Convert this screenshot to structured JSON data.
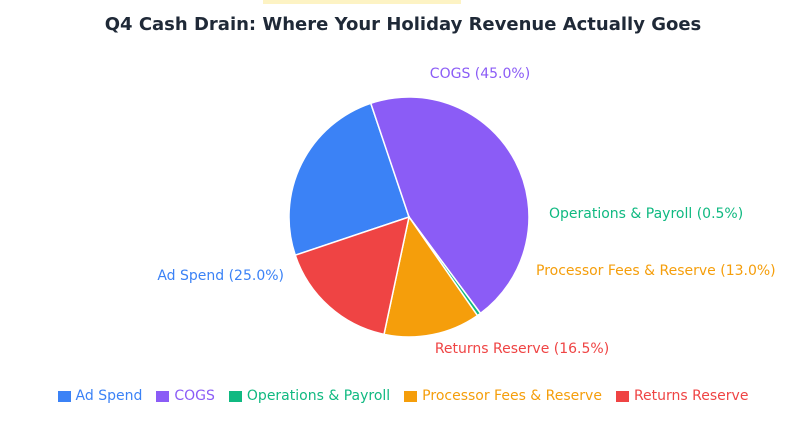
{
  "chart_data": {
    "type": "pie",
    "title": "Q4 Cash Drain: Where Your Holiday Revenue Actually Goes",
    "slices": [
      {
        "name": "Ad Spend",
        "label": "Ad Spend (25.0%)",
        "value": 25.0,
        "color": "#3b82f6"
      },
      {
        "name": "COGS",
        "label": "COGS (45.0%)",
        "value": 45.0,
        "color": "#8b5cf6"
      },
      {
        "name": "Operations & Payroll",
        "label": "Operations & Payroll (0.5%)",
        "value": 0.5,
        "color": "#10b981"
      },
      {
        "name": "Processor Fees & Reserve",
        "label": "Processor Fees & Reserve (13.0%)",
        "value": 13.0,
        "color": "#f59e0b"
      },
      {
        "name": "Returns Reserve",
        "label": "Returns Reserve (16.5%)",
        "value": 16.5,
        "color": "#ef4444"
      }
    ],
    "legend_position": "bottom"
  }
}
